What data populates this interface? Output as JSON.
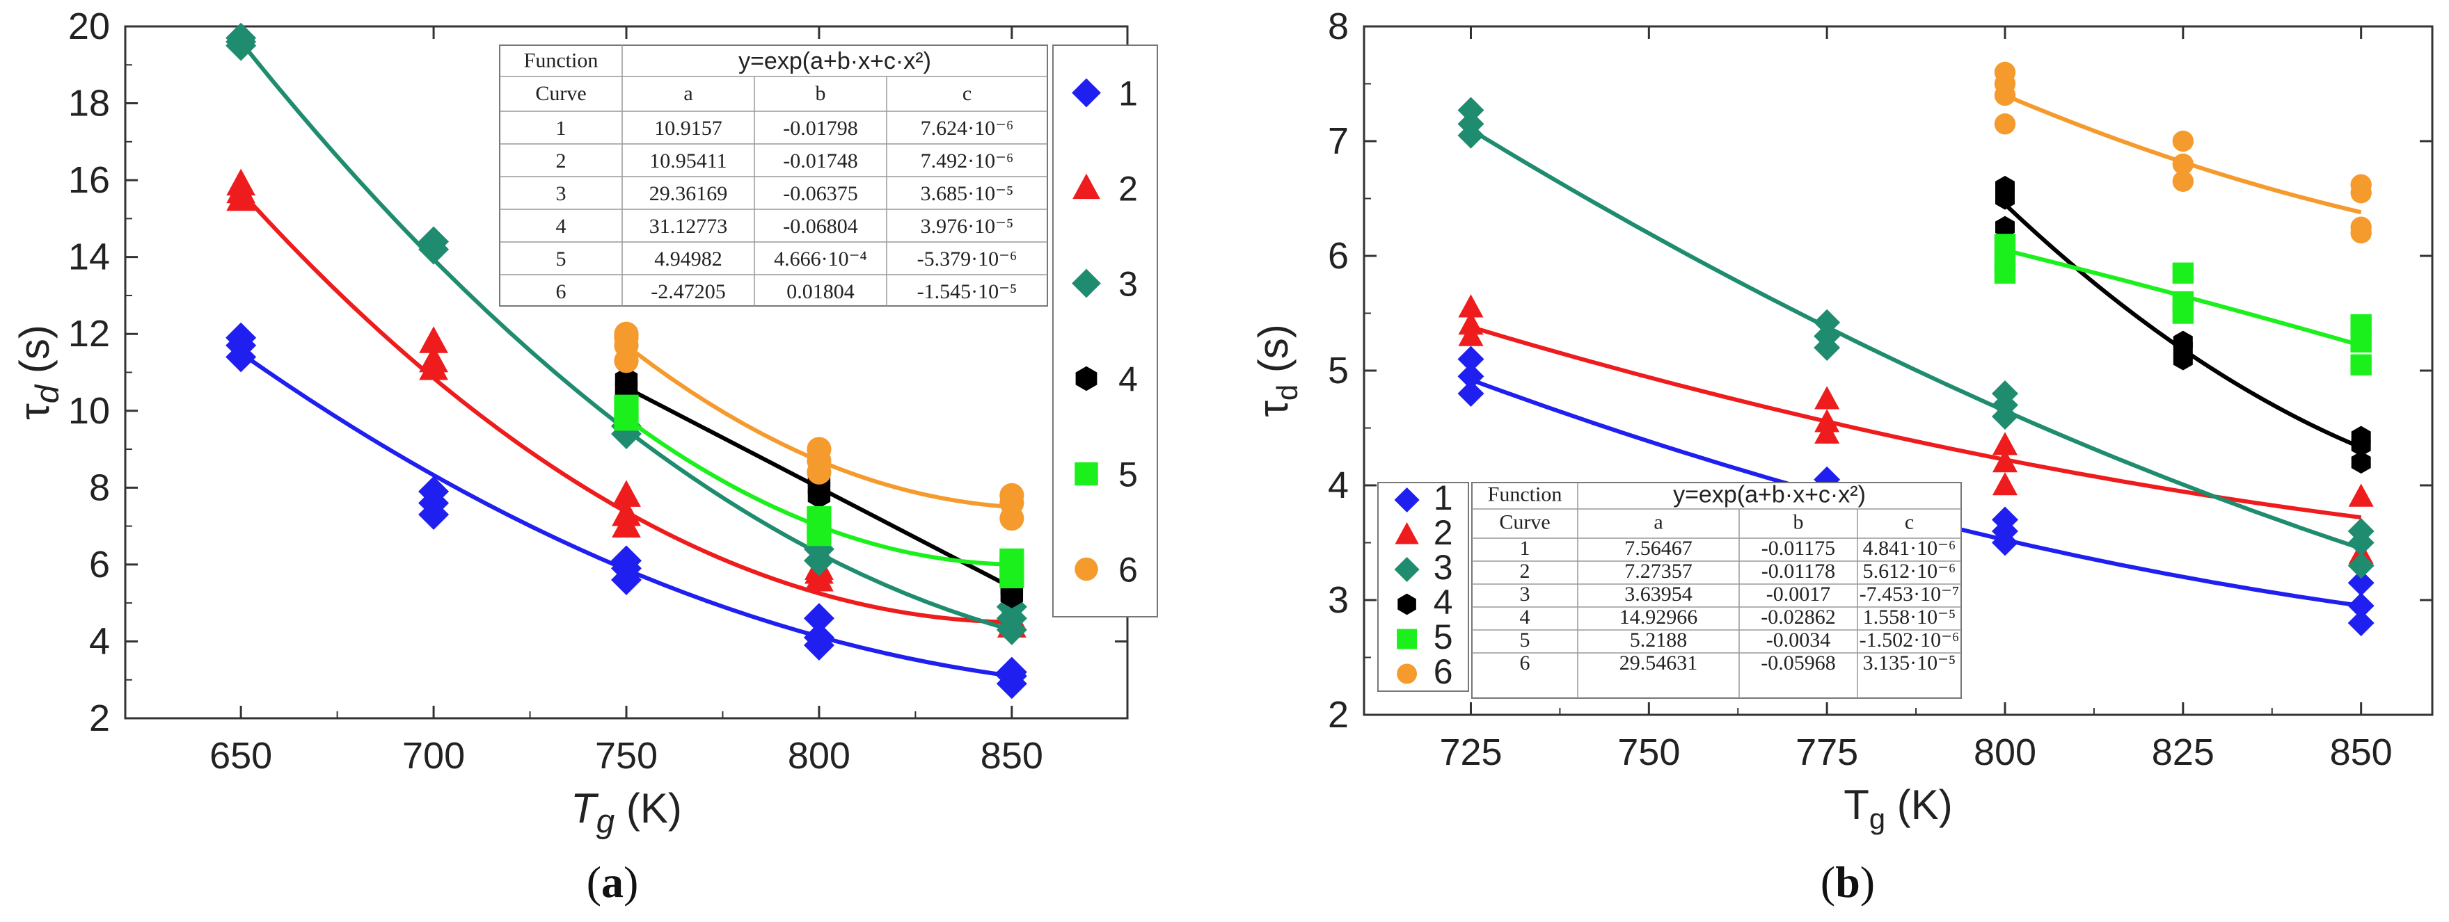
{
  "chart_data": [
    {
      "panel": "(a)",
      "type": "scatter",
      "xlabel": "T",
      "xlabel_sub": "g",
      "xlabel_unit": " (K)",
      "ylabel": "τ",
      "ylabel_sub": "d",
      "ylabel_unit": " (s)",
      "xlim": [
        620,
        880
      ],
      "ylim": [
        2,
        20
      ],
      "xticks": [
        650,
        700,
        750,
        800,
        850
      ],
      "yticks": [
        2,
        4,
        6,
        8,
        10,
        12,
        14,
        16,
        18,
        20
      ],
      "legend_position": "top-right",
      "table": {
        "header": [
          "Function",
          "y=exp(a+b·x+c·x²)"
        ],
        "columns": [
          "Curve",
          "a",
          "b",
          "c"
        ],
        "rows": [
          [
            "1",
            "10.9157",
            "-0.01798",
            "7.624·10⁻⁶"
          ],
          [
            "2",
            "10.95411",
            "-0.01748",
            "7.492·10⁻⁶"
          ],
          [
            "3",
            "29.36169",
            "-0.06375",
            "3.685·10⁻⁵"
          ],
          [
            "4",
            "31.12773",
            "-0.06804",
            "3.976·10⁻⁵"
          ],
          [
            "5",
            "4.94982",
            "4.666·10⁻⁴",
            "-5.379·10⁻⁶"
          ],
          [
            "6",
            "-2.47205",
            "0.01804",
            "-1.545·10⁻⁵"
          ]
        ]
      },
      "series": [
        {
          "name": "1",
          "color": "#1f1ff0",
          "marker": "diamond",
          "x": [
            650,
            650,
            650,
            700,
            700,
            700,
            750,
            750,
            750,
            800,
            800,
            800,
            850,
            850,
            850
          ],
          "y": [
            11.4,
            11.7,
            11.9,
            7.3,
            7.6,
            7.9,
            5.6,
            5.9,
            6.1,
            3.9,
            4.1,
            4.6,
            2.9,
            3.1,
            3.2
          ],
          "fit": {
            "x": [
              650,
              850
            ],
            "y": [
              11.5,
              3.1
            ]
          }
        },
        {
          "name": "2",
          "color": "#ee1c1c",
          "marker": "triangle",
          "x": [
            650,
            650,
            650,
            700,
            700,
            700,
            750,
            750,
            750,
            800,
            800,
            800,
            850,
            850
          ],
          "y": [
            15.5,
            15.7,
            15.9,
            11.1,
            11.3,
            11.8,
            7.0,
            7.3,
            7.8,
            5.6,
            5.8,
            5.9,
            4.4,
            4.6
          ],
          "fit": {
            "x": [
              650,
              850
            ],
            "y": [
              15.7,
              4.5
            ]
          }
        },
        {
          "name": "3",
          "color": "#1f8c6f",
          "marker": "diamond",
          "x": [
            650,
            650,
            650,
            700,
            700,
            750,
            750,
            800,
            800,
            850,
            850,
            850
          ],
          "y": [
            19.5,
            19.6,
            19.7,
            14.2,
            14.4,
            9.4,
            9.6,
            6.1,
            6.4,
            4.3,
            4.6,
            4.9
          ],
          "fit": {
            "x": [
              650,
              850
            ],
            "y": [
              19.6,
              4.3
            ]
          }
        },
        {
          "name": "4",
          "color": "#000000",
          "marker": "hexagon",
          "x": [
            750,
            750,
            750,
            800,
            800,
            800,
            850,
            850,
            850
          ],
          "y": [
            10.4,
            10.6,
            10.8,
            7.8,
            8.0,
            8.2,
            5.2,
            5.4,
            5.6
          ],
          "fit": {
            "x": [
              750,
              850
            ],
            "y": [
              10.6,
              5.4
            ]
          }
        },
        {
          "name": "5",
          "color": "#1cf01c",
          "marker": "square",
          "x": [
            750,
            750,
            800,
            800,
            800,
            850,
            850,
            850
          ],
          "y": [
            9.8,
            10.1,
            6.8,
            7.0,
            7.2,
            5.7,
            5.9,
            6.1
          ],
          "fit": {
            "x": [
              750,
              850
            ],
            "y": [
              9.8,
              6.0
            ]
          }
        },
        {
          "name": "6",
          "color": "#f59a2c",
          "marker": "circle",
          "x": [
            750,
            750,
            750,
            750,
            800,
            800,
            800,
            850,
            850,
            850
          ],
          "y": [
            11.3,
            11.7,
            11.9,
            12.0,
            8.4,
            8.7,
            9.0,
            7.2,
            7.6,
            7.8
          ],
          "fit": {
            "x": [
              750,
              850
            ],
            "y": [
              11.7,
              7.5
            ]
          }
        }
      ]
    },
    {
      "panel": "(b)",
      "type": "scatter",
      "xlabel": "T",
      "xlabel_sub": "g",
      "xlabel_unit": " (K)",
      "ylabel": "τ",
      "ylabel_sub": "d",
      "ylabel_unit": " (s)",
      "xlim": [
        710,
        860
      ],
      "ylim": [
        2,
        8
      ],
      "xticks": [
        725,
        750,
        775,
        800,
        825,
        850
      ],
      "yticks": [
        2,
        3,
        4,
        5,
        6,
        7,
        8
      ],
      "legend_position": "bottom-left",
      "table": {
        "header": [
          "Function",
          "y=exp(a+b·x+c·x²)"
        ],
        "columns": [
          "Curve",
          "a",
          "b",
          "c"
        ],
        "rows": [
          [
            "1",
            "7.56467",
            "-0.01175",
            "4.841·10⁻⁶"
          ],
          [
            "2",
            "7.27357",
            "-0.01178",
            "5.612·10⁻⁶"
          ],
          [
            "3",
            "3.63954",
            "-0.0017",
            "-7.453·10⁻⁷"
          ],
          [
            "4",
            "14.92966",
            "-0.02862",
            "1.558·10⁻⁵"
          ],
          [
            "5",
            "5.2188",
            "-0.0034",
            "-1.502·10⁻⁶"
          ],
          [
            "6",
            "29.54631",
            "-0.05968",
            "3.135·10⁻⁵"
          ]
        ]
      },
      "series": [
        {
          "name": "1",
          "color": "#1f1ff0",
          "marker": "diamond",
          "x": [
            725,
            725,
            725,
            775,
            800,
            800,
            800,
            850,
            850,
            850
          ],
          "y": [
            4.8,
            4.95,
            5.1,
            4.05,
            3.5,
            3.6,
            3.7,
            2.8,
            2.95,
            3.15
          ],
          "fit": {
            "x": [
              725,
              850
            ],
            "y": [
              4.92,
              2.95
            ]
          }
        },
        {
          "name": "2",
          "color": "#ee1c1c",
          "marker": "triangle",
          "x": [
            725,
            725,
            725,
            775,
            775,
            775,
            800,
            800,
            800,
            850,
            850
          ],
          "y": [
            5.3,
            5.4,
            5.55,
            4.45,
            4.55,
            4.75,
            4.0,
            4.2,
            4.35,
            3.4,
            3.9
          ],
          "fit": {
            "x": [
              725,
              850
            ],
            "y": [
              5.38,
              3.72
            ]
          }
        },
        {
          "name": "3",
          "color": "#1f8c6f",
          "marker": "diamond",
          "x": [
            725,
            725,
            725,
            775,
            775,
            775,
            800,
            800,
            800,
            850,
            850,
            850
          ],
          "y": [
            7.05,
            7.15,
            7.27,
            5.2,
            5.3,
            5.42,
            4.6,
            4.7,
            4.8,
            3.3,
            3.5,
            3.6
          ],
          "fit": {
            "x": [
              725,
              850
            ],
            "y": [
              7.1,
              3.45
            ]
          }
        },
        {
          "name": "4",
          "color": "#000000",
          "marker": "hexagon",
          "x": [
            800,
            800,
            800,
            825,
            825,
            825,
            850,
            850,
            850
          ],
          "y": [
            6.25,
            6.5,
            6.6,
            5.1,
            5.2,
            5.25,
            4.2,
            4.35,
            4.42
          ],
          "fit": {
            "x": [
              800,
              850
            ],
            "y": [
              6.45,
              4.33
            ]
          }
        },
        {
          "name": "5",
          "color": "#1cf01c",
          "marker": "square",
          "x": [
            800,
            800,
            800,
            825,
            825,
            825,
            850,
            850,
            850
          ],
          "y": [
            5.85,
            5.95,
            6.1,
            5.5,
            5.6,
            5.85,
            5.05,
            5.25,
            5.4
          ],
          "fit": {
            "x": [
              800,
              850
            ],
            "y": [
              6.05,
              5.22
            ]
          }
        },
        {
          "name": "6",
          "color": "#f59a2c",
          "marker": "circle",
          "x": [
            800,
            800,
            800,
            800,
            825,
            825,
            825,
            850,
            850,
            850,
            850
          ],
          "y": [
            7.15,
            7.4,
            7.5,
            7.6,
            6.65,
            6.8,
            7.0,
            6.2,
            6.25,
            6.55,
            6.62
          ],
          "fit": {
            "x": [
              800,
              850
            ],
            "y": [
              7.4,
              6.38
            ]
          }
        }
      ]
    }
  ],
  "captions": {
    "a": "(a)",
    "b": "(b)"
  }
}
